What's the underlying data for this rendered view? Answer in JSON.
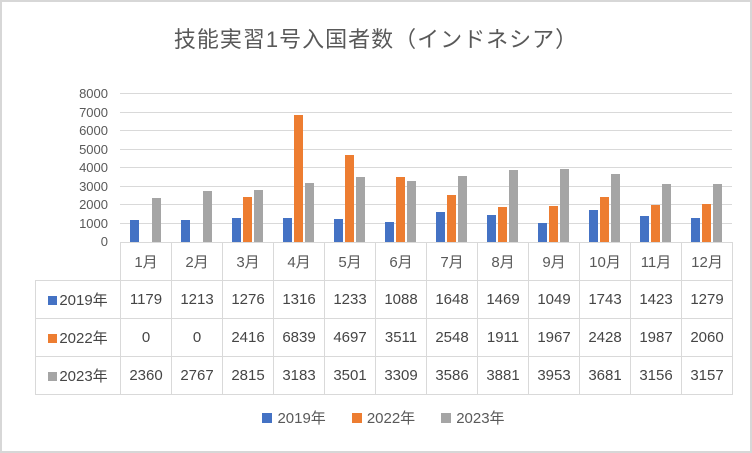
{
  "chart_data": {
    "type": "bar",
    "title": "技能実習1号入国者数（インドネシア）",
    "categories": [
      "1月",
      "2月",
      "3月",
      "4月",
      "5月",
      "6月",
      "7月",
      "8月",
      "9月",
      "10月",
      "11月",
      "12月"
    ],
    "series": [
      {
        "name": "2019年",
        "color": "#4472C4",
        "values": [
          1179,
          1213,
          1276,
          1316,
          1233,
          1088,
          1648,
          1469,
          1049,
          1743,
          1423,
          1279
        ]
      },
      {
        "name": "2022年",
        "color": "#ED7D31",
        "values": [
          0,
          0,
          2416,
          6839,
          4697,
          3511,
          2548,
          1911,
          1967,
          2428,
          1987,
          2060
        ]
      },
      {
        "name": "2023年",
        "color": "#A5A5A5",
        "values": [
          2360,
          2767,
          2815,
          3183,
          3501,
          3309,
          3586,
          3881,
          3953,
          3681,
          3156,
          3157
        ]
      }
    ],
    "xlabel": "",
    "ylabel": "",
    "ylim": [
      0,
      8000
    ],
    "y_ticks": [
      0,
      1000,
      2000,
      3000,
      4000,
      5000,
      6000,
      7000,
      8000
    ],
    "grid": true,
    "legend_position": "bottom",
    "data_table_shown": true
  },
  "style": {
    "gridline_color": "#d9d9d9",
    "text_color": "#595959",
    "table_text_color": "#454545"
  }
}
